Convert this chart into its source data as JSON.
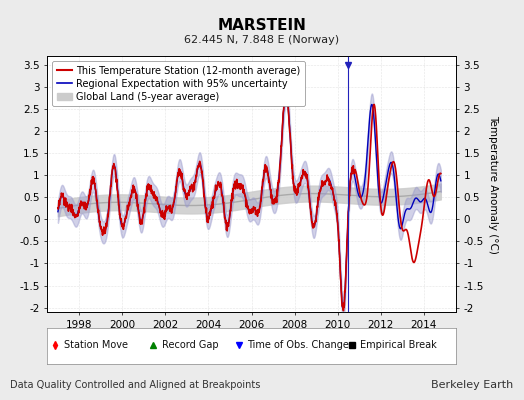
{
  "title": "MARSTEIN",
  "subtitle": "62.445 N, 7.848 E (Norway)",
  "ylabel": "Temperature Anomaly (°C)",
  "footer_left": "Data Quality Controlled and Aligned at Breakpoints",
  "footer_right": "Berkeley Earth",
  "xlim": [
    1996.5,
    2015.5
  ],
  "ylim": [
    -2.1,
    3.7
  ],
  "yticks": [
    -2,
    -1.5,
    -1,
    -0.5,
    0,
    0.5,
    1,
    1.5,
    2,
    2.5,
    3,
    3.5
  ],
  "xticks": [
    1998,
    2000,
    2002,
    2004,
    2006,
    2008,
    2010,
    2012,
    2014
  ],
  "bg_color": "#ebebeb",
  "plot_bg_color": "#ffffff",
  "red_line_color": "#cc0000",
  "blue_line_color": "#0000bb",
  "blue_fill_color": "#9999cc",
  "gray_line_color": "#aaaaaa",
  "gray_fill_color": "#cccccc",
  "grid_color": "#cccccc",
  "obs_change_color": "#2222bb",
  "title_fontsize": 11,
  "subtitle_fontsize": 8,
  "tick_fontsize": 7.5,
  "ylabel_fontsize": 7.5,
  "legend_fontsize": 7,
  "footer_fontsize": 7
}
